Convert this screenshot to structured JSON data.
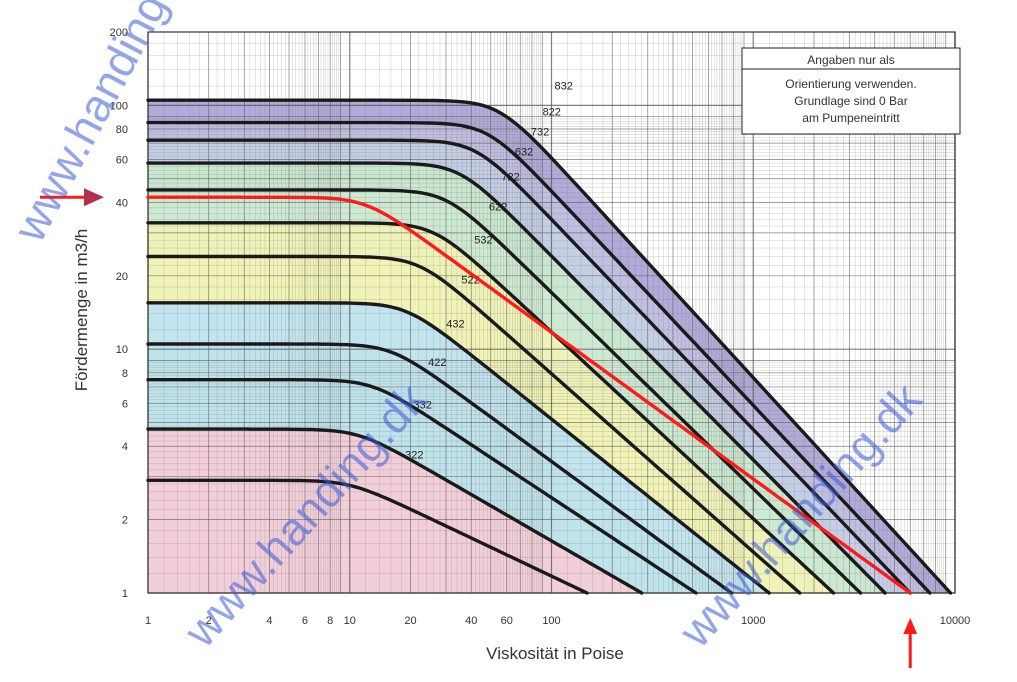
{
  "chart_data": {
    "type": "line",
    "xlabel": "Viskosität in Poise",
    "ylabel": "Fördermenge in m3/h",
    "xscale": "log",
    "yscale": "log",
    "xlim": [
      1,
      10000
    ],
    "ylim": [
      1,
      200
    ],
    "grid": true,
    "x_ticks": [
      1,
      2,
      4,
      6,
      8,
      10,
      20,
      40,
      60,
      100,
      1000,
      10000
    ],
    "y_ticks": [
      1,
      2,
      4,
      6,
      8,
      10,
      20,
      40,
      60,
      80,
      100,
      200
    ],
    "note": [
      "Angaben nur als",
      "Orientierung verwenden.",
      "Grundlage sind 0 Bar",
      "am Pumpeneintritt"
    ],
    "bands": [
      {
        "name": "322",
        "color": "#f2cfd8"
      },
      {
        "name": "332",
        "color": "#f2cfd8"
      },
      {
        "name": "422",
        "color": "#bfe3ea"
      },
      {
        "name": "432",
        "color": "#bfe3ea"
      },
      {
        "name": "522",
        "color": "#c2e4ee"
      },
      {
        "name": "532",
        "color": "#f0f2b6"
      },
      {
        "name": "622",
        "color": "#eef2b8"
      },
      {
        "name": "722",
        "color": "#cde9d2"
      },
      {
        "name": "632",
        "color": "#c9e6cf"
      },
      {
        "name": "732",
        "color": "#c4cfe6"
      },
      {
        "name": "822",
        "color": "#c0bfe2"
      },
      {
        "name": "832",
        "color": "#b2aad8"
      }
    ],
    "series": [
      {
        "name": "322",
        "flat": 2.9,
        "knee": 10,
        "y_end": 1,
        "x_end": 150
      },
      {
        "name": "332",
        "flat": 4.7,
        "knee": 11,
        "y_end": 1,
        "x_end": 280
      },
      {
        "name": "422",
        "flat": 7.5,
        "knee": 13,
        "y_end": 1,
        "x_end": 520
      },
      {
        "name": "432",
        "flat": 10.5,
        "knee": 16,
        "y_end": 1,
        "x_end": 780
      },
      {
        "name": "522",
        "flat": 15.5,
        "knee": 19,
        "y_end": 1,
        "x_end": 1200
      },
      {
        "name": "532",
        "flat": 24,
        "knee": 22,
        "y_end": 1,
        "x_end": 1700
      },
      {
        "name": "622",
        "flat": 33,
        "knee": 26,
        "y_end": 1,
        "x_end": 2500
      },
      {
        "name": "722",
        "flat": 45,
        "knee": 30,
        "y_end": 1,
        "x_end": 3400
      },
      {
        "name": "632",
        "flat": 58,
        "knee": 35,
        "y_end": 1,
        "x_end": 4500
      },
      {
        "name": "732",
        "flat": 72,
        "knee": 42,
        "y_end": 1,
        "x_end": 6000
      },
      {
        "name": "822",
        "flat": 85,
        "knee": 48,
        "y_end": 1,
        "x_end": 7500
      },
      {
        "name": "832",
        "flat": 105,
        "knee": 55,
        "y_end": 1,
        "x_end": 9500
      }
    ],
    "highlight": {
      "color": "#ff1a1a",
      "flat": 42,
      "knee": 12,
      "x_end": 6000,
      "y_end": 1
    },
    "arrow_y_value": 42,
    "arrow_x_value": 6000,
    "watermarks": [
      "www.handing.dk",
      "www.handing.dk",
      "www.handing.dk"
    ]
  }
}
